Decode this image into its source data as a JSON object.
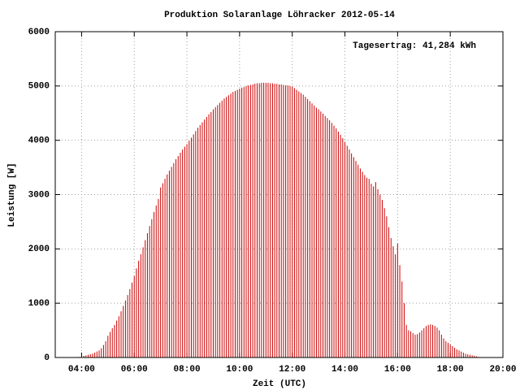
{
  "chart_data": {
    "type": "impulse",
    "title": "Produktion Solaranlage Löhracker 2012-05-14",
    "annotation": "Tagesertrag: 41,284 kWh",
    "xlabel": "Zeit (UTC)",
    "ylabel": "Leistung [W]",
    "xlim": [
      "03:00",
      "20:00"
    ],
    "xticks": [
      "04:00",
      "06:00",
      "08:00",
      "10:00",
      "12:00",
      "14:00",
      "16:00",
      "18:00",
      "20:00"
    ],
    "ylim": [
      0,
      6000
    ],
    "yticks": [
      0,
      1000,
      2000,
      3000,
      4000,
      5000,
      6000
    ],
    "grid": true,
    "color": "#cc0000",
    "x": [
      "03:55",
      "04:00",
      "04:05",
      "04:10",
      "04:15",
      "04:20",
      "04:25",
      "04:30",
      "04:35",
      "04:40",
      "04:45",
      "04:50",
      "04:55",
      "05:00",
      "05:05",
      "05:10",
      "05:15",
      "05:20",
      "05:25",
      "05:30",
      "05:35",
      "05:40",
      "05:45",
      "05:50",
      "05:55",
      "06:00",
      "06:05",
      "06:10",
      "06:15",
      "06:20",
      "06:25",
      "06:30",
      "06:35",
      "06:40",
      "06:45",
      "06:50",
      "06:55",
      "07:00",
      "07:05",
      "07:10",
      "07:15",
      "07:20",
      "07:25",
      "07:30",
      "07:35",
      "07:40",
      "07:45",
      "07:50",
      "07:55",
      "08:00",
      "08:05",
      "08:10",
      "08:15",
      "08:20",
      "08:25",
      "08:30",
      "08:35",
      "08:40",
      "08:45",
      "08:50",
      "08:55",
      "09:00",
      "09:05",
      "09:10",
      "09:15",
      "09:20",
      "09:25",
      "09:30",
      "09:35",
      "09:40",
      "09:45",
      "09:50",
      "09:55",
      "10:00",
      "10:05",
      "10:10",
      "10:15",
      "10:20",
      "10:25",
      "10:30",
      "10:35",
      "10:40",
      "10:45",
      "10:50",
      "10:55",
      "11:00",
      "11:05",
      "11:10",
      "11:15",
      "11:20",
      "11:25",
      "11:30",
      "11:35",
      "11:40",
      "11:45",
      "11:50",
      "11:55",
      "12:00",
      "12:05",
      "12:10",
      "12:15",
      "12:20",
      "12:25",
      "12:30",
      "12:35",
      "12:40",
      "12:45",
      "12:50",
      "12:55",
      "13:00",
      "13:05",
      "13:10",
      "13:15",
      "13:20",
      "13:25",
      "13:30",
      "13:35",
      "13:40",
      "13:45",
      "13:50",
      "13:55",
      "14:00",
      "14:05",
      "14:10",
      "14:15",
      "14:20",
      "14:25",
      "14:30",
      "14:35",
      "14:40",
      "14:45",
      "14:50",
      "14:55",
      "15:00",
      "15:05",
      "15:10",
      "15:15",
      "15:20",
      "15:25",
      "15:30",
      "15:35",
      "15:40",
      "15:45",
      "15:50",
      "15:55",
      "16:00",
      "16:05",
      "16:10",
      "16:15",
      "16:20",
      "16:25",
      "16:30",
      "16:35",
      "16:40",
      "16:45",
      "16:50",
      "16:55",
      "17:00",
      "17:05",
      "17:10",
      "17:15",
      "17:20",
      "17:25",
      "17:30",
      "17:35",
      "17:40",
      "17:45",
      "17:50",
      "17:55",
      "18:00",
      "18:05",
      "18:10",
      "18:15",
      "18:20",
      "18:25",
      "18:30",
      "18:35",
      "18:40",
      "18:45",
      "18:50",
      "18:55",
      "19:00",
      "19:05"
    ],
    "values": [
      10,
      20,
      30,
      40,
      50,
      60,
      70,
      90,
      110,
      130,
      170,
      230,
      300,
      400,
      470,
      540,
      600,
      680,
      760,
      850,
      950,
      1050,
      1150,
      1260,
      1380,
      1500,
      1640,
      1780,
      1900,
      2030,
      2160,
      2290,
      2420,
      2550,
      2680,
      2800,
      2920,
      3130,
      3210,
      3290,
      3370,
      3440,
      3510,
      3580,
      3650,
      3710,
      3770,
      3830,
      3880,
      3930,
      3990,
      4050,
      4110,
      4170,
      4230,
      4280,
      4330,
      4380,
      4430,
      4480,
      4520,
      4570,
      4610,
      4650,
      4690,
      4730,
      4770,
      4800,
      4830,
      4860,
      4890,
      4910,
      4930,
      4950,
      4970,
      4980,
      5000,
      5010,
      5020,
      5030,
      5040,
      5050,
      5050,
      5060,
      5060,
      5060,
      5060,
      5050,
      5050,
      5040,
      5040,
      5030,
      5030,
      5020,
      5010,
      5010,
      5000,
      4990,
      4960,
      4930,
      4900,
      4870,
      4840,
      4800,
      4760,
      4720,
      4680,
      4640,
      4600,
      4570,
      4530,
      4490,
      4450,
      4410,
      4370,
      4320,
      4270,
      4220,
      4160,
      4100,
      4040,
      3970,
      3900,
      3830,
      3760,
      3690,
      3620,
      3550,
      3480,
      3420,
      3360,
      3310,
      3290,
      3200,
      3150,
      3230,
      3100,
      3000,
      2900,
      2750,
      2600,
      2400,
      2200,
      2050,
      1900,
      2100,
      1700,
      1400,
      1000,
      600,
      500,
      480,
      450,
      420,
      430,
      460,
      500,
      540,
      580,
      600,
      610,
      600,
      580,
      550,
      500,
      420,
      350,
      300,
      270,
      240,
      210,
      180,
      150,
      130,
      110,
      90,
      70,
      60,
      50,
      40,
      30,
      20,
      10
    ]
  }
}
